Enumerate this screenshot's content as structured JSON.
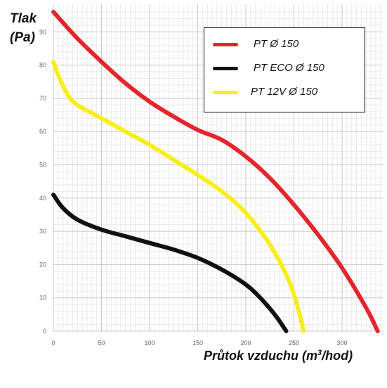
{
  "chart_data": {
    "type": "line",
    "ylabel_line1": "Tlak",
    "ylabel_line2": "(Pa)",
    "xlabel_main": "Průtok vzduchu (m",
    "xlabel_sup": "3",
    "xlabel_end": "/hod)",
    "xlim": [
      0,
      340
    ],
    "ylim": [
      0,
      97
    ],
    "x_ticks": [
      0,
      50,
      100,
      150,
      200,
      250,
      300
    ],
    "y_ticks": [
      0,
      10,
      20,
      30,
      40,
      50,
      60,
      70,
      80,
      90
    ],
    "grid": true,
    "legend_position": "top-right",
    "series": [
      {
        "name": "PT  Ø 150",
        "color": "#e3262d",
        "points": [
          [
            0,
            96
          ],
          [
            25,
            88
          ],
          [
            50,
            81
          ],
          [
            75,
            74.5
          ],
          [
            100,
            69
          ],
          [
            125,
            64.5
          ],
          [
            150,
            60.5
          ],
          [
            175,
            57.5
          ],
          [
            200,
            52.5
          ],
          [
            225,
            46
          ],
          [
            250,
            38
          ],
          [
            275,
            29
          ],
          [
            300,
            19
          ],
          [
            325,
            7
          ],
          [
            337,
            0
          ]
        ]
      },
      {
        "name": "PT ECO Ø 150",
        "color": "#111111",
        "points": [
          [
            0,
            41
          ],
          [
            10,
            37
          ],
          [
            25,
            33.5
          ],
          [
            50,
            30.5
          ],
          [
            75,
            28.5
          ],
          [
            100,
            26.5
          ],
          [
            125,
            24.5
          ],
          [
            150,
            22
          ],
          [
            175,
            18.5
          ],
          [
            200,
            14
          ],
          [
            215,
            10
          ],
          [
            230,
            5
          ],
          [
            242,
            0
          ]
        ]
      },
      {
        "name": "PT 12V Ø 150",
        "color": "#f7ee1a",
        "points": [
          [
            0,
            81
          ],
          [
            5,
            77
          ],
          [
            15,
            71
          ],
          [
            25,
            68
          ],
          [
            50,
            64
          ],
          [
            75,
            60
          ],
          [
            100,
            56
          ],
          [
            125,
            51.5
          ],
          [
            150,
            47
          ],
          [
            175,
            42
          ],
          [
            200,
            35.5
          ],
          [
            225,
            26
          ],
          [
            245,
            15
          ],
          [
            255,
            6
          ],
          [
            260,
            0
          ]
        ]
      }
    ]
  }
}
